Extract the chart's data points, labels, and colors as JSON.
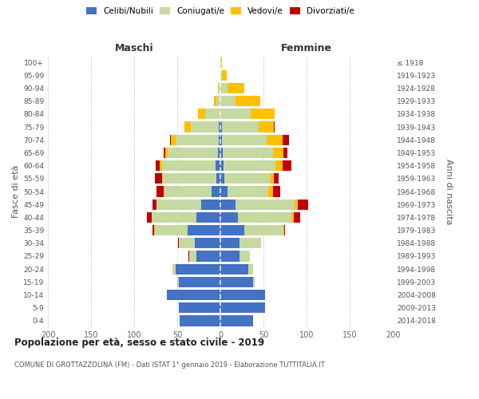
{
  "age_groups": [
    "0-4",
    "5-9",
    "10-14",
    "15-19",
    "20-24",
    "25-29",
    "30-34",
    "35-39",
    "40-44",
    "45-49",
    "50-54",
    "55-59",
    "60-64",
    "65-69",
    "70-74",
    "75-79",
    "80-84",
    "85-89",
    "90-94",
    "95-99",
    "100+"
  ],
  "birth_years": [
    "2014-2018",
    "2009-2013",
    "2004-2008",
    "1999-2003",
    "1994-1998",
    "1989-1993",
    "1984-1988",
    "1979-1983",
    "1974-1978",
    "1969-1973",
    "1964-1968",
    "1959-1963",
    "1954-1958",
    "1949-1953",
    "1944-1948",
    "1939-1943",
    "1934-1938",
    "1929-1933",
    "1924-1928",
    "1919-1923",
    "≤ 1918"
  ],
  "maschi": {
    "celibi": [
      47,
      48,
      62,
      48,
      52,
      28,
      30,
      38,
      28,
      22,
      10,
      5,
      6,
      3,
      2,
      2,
      0,
      0,
      0,
      0,
      0
    ],
    "coniugati": [
      0,
      0,
      0,
      2,
      4,
      8,
      18,
      38,
      52,
      52,
      55,
      62,
      62,
      58,
      50,
      32,
      18,
      5,
      2,
      0,
      0
    ],
    "vedovi": [
      0,
      0,
      0,
      0,
      0,
      0,
      0,
      1,
      0,
      0,
      1,
      1,
      2,
      3,
      5,
      8,
      8,
      2,
      1,
      0,
      0
    ],
    "divorziati": [
      0,
      0,
      0,
      0,
      0,
      1,
      1,
      2,
      5,
      5,
      8,
      8,
      5,
      2,
      1,
      0,
      0,
      0,
      0,
      0,
      0
    ]
  },
  "femmine": {
    "nubili": [
      38,
      52,
      52,
      38,
      32,
      22,
      22,
      28,
      20,
      18,
      8,
      5,
      4,
      3,
      2,
      2,
      0,
      0,
      0,
      0,
      0
    ],
    "coniugate": [
      0,
      0,
      0,
      2,
      6,
      12,
      25,
      45,
      62,
      68,
      48,
      52,
      60,
      58,
      52,
      42,
      35,
      18,
      8,
      2,
      0
    ],
    "vedove": [
      0,
      0,
      0,
      0,
      0,
      0,
      0,
      1,
      3,
      4,
      5,
      5,
      8,
      12,
      18,
      18,
      28,
      28,
      20,
      5,
      2
    ],
    "divorziate": [
      0,
      0,
      0,
      0,
      0,
      0,
      0,
      1,
      8,
      12,
      8,
      6,
      10,
      5,
      8,
      1,
      0,
      0,
      0,
      0,
      0
    ]
  },
  "colors": {
    "celibi": "#4472C4",
    "coniugati": "#c5d9a0",
    "vedovi": "#ffc000",
    "divorziati": "#c00000"
  },
  "xlim": 200,
  "title": "Popolazione per età, sesso e stato civile - 2019",
  "subtitle": "COMUNE DI GROTTAZZOLINA (FM) - Dati ISTAT 1° gennaio 2019 - Elaborazione TUTTITALIA.IT",
  "ylabel_left": "Fasce di età",
  "ylabel_right": "Anni di nascita",
  "label_maschi": "Maschi",
  "label_femmine": "Femmine",
  "bg_color": "#ffffff",
  "grid_color": "#c8c8c8",
  "legend_labels": [
    "Celibi/Nubili",
    "Coniugati/e",
    "Vedovi/e",
    "Divorziati/e"
  ]
}
